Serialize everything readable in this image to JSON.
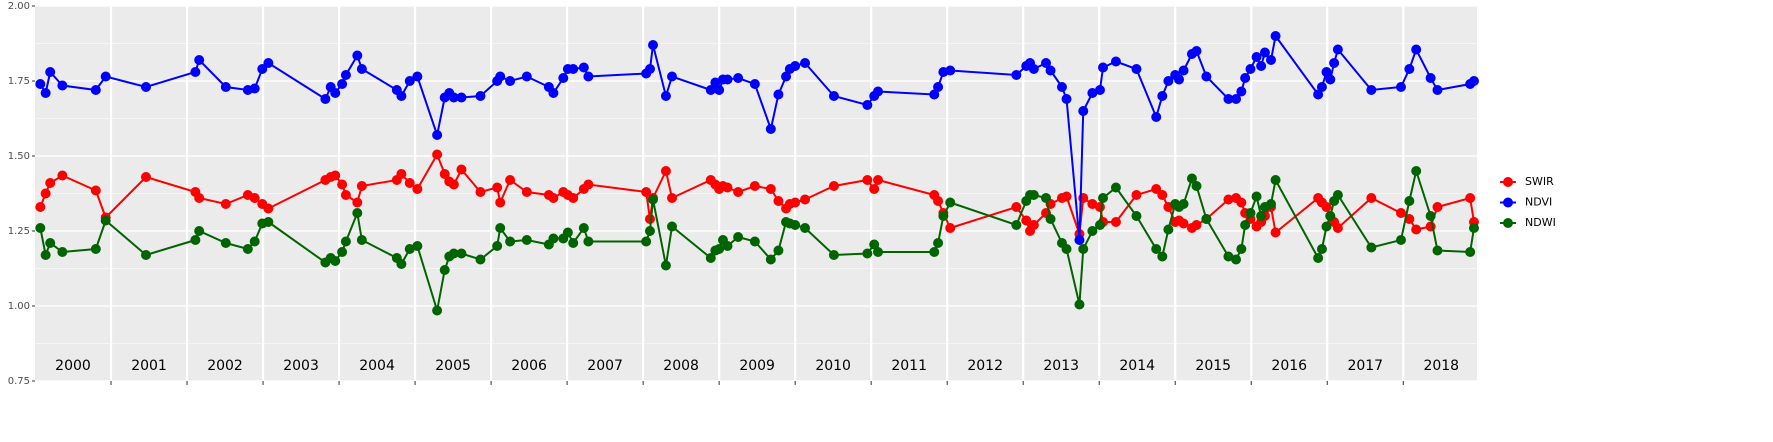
{
  "chart_data": {
    "type": "line",
    "x": [
      2000.07,
      2000.14,
      2000.2,
      2000.36,
      2000.8,
      2000.93,
      2001.46,
      2002.11,
      2002.16,
      2002.51,
      2002.8,
      2002.89,
      2002.99,
      2003.07,
      2003.82,
      2003.89,
      2003.95,
      2004.04,
      2004.09,
      2004.24,
      2004.3,
      2004.76,
      2004.82,
      2004.93,
      2005.03,
      2005.29,
      2005.39,
      2005.45,
      2005.51,
      2005.61,
      2005.86,
      2006.08,
      2006.12,
      2006.25,
      2006.47,
      2006.76,
      2006.82,
      2006.95,
      2007.01,
      2007.08,
      2007.22,
      2007.28,
      2008.04,
      2008.09,
      2008.13,
      2008.3,
      2008.38,
      2008.89,
      2008.95,
      2009.0,
      2009.05,
      2009.11,
      2009.25,
      2009.47,
      2009.68,
      2009.78,
      2009.88,
      2009.93,
      2010.0,
      2010.13,
      2010.51,
      2010.95,
      2011.04,
      2011.09,
      2011.83,
      2011.88,
      2011.95,
      2012.04,
      2012.91,
      2013.04,
      2013.09,
      2013.14,
      2013.3,
      2013.36,
      2013.51,
      2013.57,
      2013.74,
      2013.79,
      2013.91,
      2014.01,
      2014.05,
      2014.22,
      2014.49,
      2014.75,
      2014.83,
      2014.91,
      2015.0,
      2015.05,
      2015.11,
      2015.22,
      2015.28,
      2015.41,
      2015.7,
      2015.8,
      2015.87,
      2015.92,
      2015.99,
      2016.07,
      2016.13,
      2016.18,
      2016.26,
      2016.32,
      2016.88,
      2016.93,
      2016.99,
      2017.04,
      2017.09,
      2017.14,
      2017.58,
      2017.97,
      2018.08,
      2018.17,
      2018.36,
      2018.45,
      2018.88,
      2018.93
    ],
    "series": [
      {
        "name": "SWIR",
        "color": "#ff0000",
        "values": [
          1.33,
          1.375,
          1.41,
          1.435,
          1.385,
          1.295,
          1.43,
          1.38,
          1.36,
          1.34,
          1.37,
          1.36,
          1.34,
          1.325,
          1.42,
          1.43,
          1.435,
          1.405,
          1.37,
          1.345,
          1.4,
          1.42,
          1.44,
          1.41,
          1.39,
          1.505,
          1.44,
          1.415,
          1.405,
          1.455,
          1.38,
          1.395,
          1.345,
          1.42,
          1.38,
          1.37,
          1.36,
          1.38,
          1.37,
          1.36,
          1.39,
          1.405,
          1.38,
          1.29,
          1.36,
          1.45,
          1.36,
          1.42,
          1.405,
          1.39,
          1.4,
          1.395,
          1.38,
          1.4,
          1.39,
          1.35,
          1.325,
          1.34,
          1.345,
          1.355,
          1.4,
          1.42,
          1.39,
          1.42,
          1.37,
          1.35,
          1.31,
          1.26,
          1.33,
          1.285,
          1.25,
          1.27,
          1.31,
          1.34,
          1.36,
          1.365,
          1.24,
          1.36,
          1.34,
          1.33,
          1.28,
          1.28,
          1.37,
          1.39,
          1.37,
          1.33,
          1.28,
          1.285,
          1.275,
          1.26,
          1.27,
          1.29,
          1.355,
          1.36,
          1.345,
          1.31,
          1.29,
          1.265,
          1.28,
          1.3,
          1.33,
          1.245,
          1.36,
          1.345,
          1.33,
          1.3,
          1.28,
          1.26,
          1.36,
          1.31,
          1.29,
          1.255,
          1.265,
          1.33,
          1.36,
          1.28
        ]
      },
      {
        "name": "NDVI",
        "color": "#0000ff",
        "values": [
          1.74,
          1.71,
          1.78,
          1.735,
          1.72,
          1.765,
          1.73,
          1.78,
          1.82,
          1.73,
          1.72,
          1.725,
          1.79,
          1.81,
          1.69,
          1.73,
          1.71,
          1.74,
          1.77,
          1.835,
          1.79,
          1.72,
          1.7,
          1.75,
          1.765,
          1.57,
          1.695,
          1.71,
          1.695,
          1.695,
          1.7,
          1.75,
          1.765,
          1.75,
          1.765,
          1.73,
          1.71,
          1.76,
          1.79,
          1.79,
          1.795,
          1.765,
          1.775,
          1.79,
          1.87,
          1.7,
          1.765,
          1.72,
          1.745,
          1.72,
          1.755,
          1.755,
          1.76,
          1.74,
          1.59,
          1.705,
          1.765,
          1.79,
          1.8,
          1.81,
          1.7,
          1.67,
          1.7,
          1.715,
          1.705,
          1.73,
          1.78,
          1.785,
          1.77,
          1.8,
          1.81,
          1.79,
          1.81,
          1.785,
          1.73,
          1.69,
          1.22,
          1.65,
          1.71,
          1.72,
          1.795,
          1.815,
          1.79,
          1.63,
          1.7,
          1.75,
          1.77,
          1.755,
          1.785,
          1.84,
          1.85,
          1.765,
          1.69,
          1.69,
          1.715,
          1.76,
          1.79,
          1.83,
          1.8,
          1.845,
          1.82,
          1.9,
          1.705,
          1.73,
          1.78,
          1.755,
          1.81,
          1.855,
          1.72,
          1.73,
          1.79,
          1.855,
          1.76,
          1.72,
          1.74,
          1.75
        ]
      },
      {
        "name": "NDWI",
        "color": "#006400",
        "values": [
          1.26,
          1.17,
          1.21,
          1.18,
          1.19,
          1.285,
          1.17,
          1.22,
          1.25,
          1.21,
          1.19,
          1.215,
          1.275,
          1.28,
          1.145,
          1.16,
          1.15,
          1.18,
          1.215,
          1.31,
          1.22,
          1.16,
          1.14,
          1.19,
          1.2,
          0.985,
          1.12,
          1.165,
          1.175,
          1.175,
          1.155,
          1.2,
          1.26,
          1.215,
          1.22,
          1.205,
          1.225,
          1.225,
          1.245,
          1.21,
          1.26,
          1.215,
          1.215,
          1.25,
          1.355,
          1.135,
          1.265,
          1.16,
          1.185,
          1.19,
          1.22,
          1.2,
          1.23,
          1.215,
          1.155,
          1.185,
          1.28,
          1.275,
          1.27,
          1.26,
          1.17,
          1.175,
          1.205,
          1.18,
          1.18,
          1.21,
          1.3,
          1.345,
          1.27,
          1.35,
          1.37,
          1.37,
          1.36,
          1.29,
          1.21,
          1.19,
          1.005,
          1.19,
          1.25,
          1.27,
          1.36,
          1.395,
          1.3,
          1.19,
          1.165,
          1.255,
          1.34,
          1.33,
          1.34,
          1.425,
          1.4,
          1.29,
          1.165,
          1.155,
          1.19,
          1.27,
          1.31,
          1.365,
          1.3,
          1.33,
          1.34,
          1.42,
          1.16,
          1.19,
          1.265,
          1.3,
          1.35,
          1.37,
          1.195,
          1.22,
          1.35,
          1.45,
          1.3,
          1.185,
          1.18,
          1.26
        ]
      }
    ],
    "xlim": [
      2000,
      2018.97
    ],
    "xticks": [
      {
        "value": 2000.5,
        "label": "2000"
      },
      {
        "value": 2001.5,
        "label": "2001"
      },
      {
        "value": 2002.5,
        "label": "2002"
      },
      {
        "value": 2003.5,
        "label": "2003"
      },
      {
        "value": 2004.5,
        "label": "2004"
      },
      {
        "value": 2005.5,
        "label": "2005"
      },
      {
        "value": 2006.5,
        "label": "2006"
      },
      {
        "value": 2007.5,
        "label": "2007"
      },
      {
        "value": 2008.5,
        "label": "2008"
      },
      {
        "value": 2009.5,
        "label": "2009"
      },
      {
        "value": 2010.5,
        "label": "2010"
      },
      {
        "value": 2011.5,
        "label": "2011"
      },
      {
        "value": 2012.5,
        "label": "2012"
      },
      {
        "value": 2013.5,
        "label": "2013"
      },
      {
        "value": 2014.5,
        "label": "2014"
      },
      {
        "value": 2015.5,
        "label": "2015"
      },
      {
        "value": 2016.5,
        "label": "2016"
      },
      {
        "value": 2017.5,
        "label": "2017"
      },
      {
        "value": 2018.5,
        "label": "2018"
      }
    ],
    "xgrid": [
      2001,
      2002,
      2003,
      2004,
      2005,
      2006,
      2007,
      2008,
      2009,
      2010,
      2011,
      2012,
      2013,
      2014,
      2015,
      2016,
      2017,
      2018
    ],
    "ylim": [
      0.75,
      2
    ],
    "yticks": [
      {
        "value": 0.75,
        "label": "0.75"
      },
      {
        "value": 1,
        "label": "1.00"
      },
      {
        "value": 1.25,
        "label": "1.25"
      },
      {
        "value": 1.5,
        "label": "1.50"
      },
      {
        "value": 1.75,
        "label": "1.75"
      },
      {
        "value": 2,
        "label": "2.00"
      }
    ],
    "yminor": [
      0.875,
      1.125,
      1.375,
      1.625,
      1.875
    ],
    "grid": true,
    "legend": "right"
  }
}
